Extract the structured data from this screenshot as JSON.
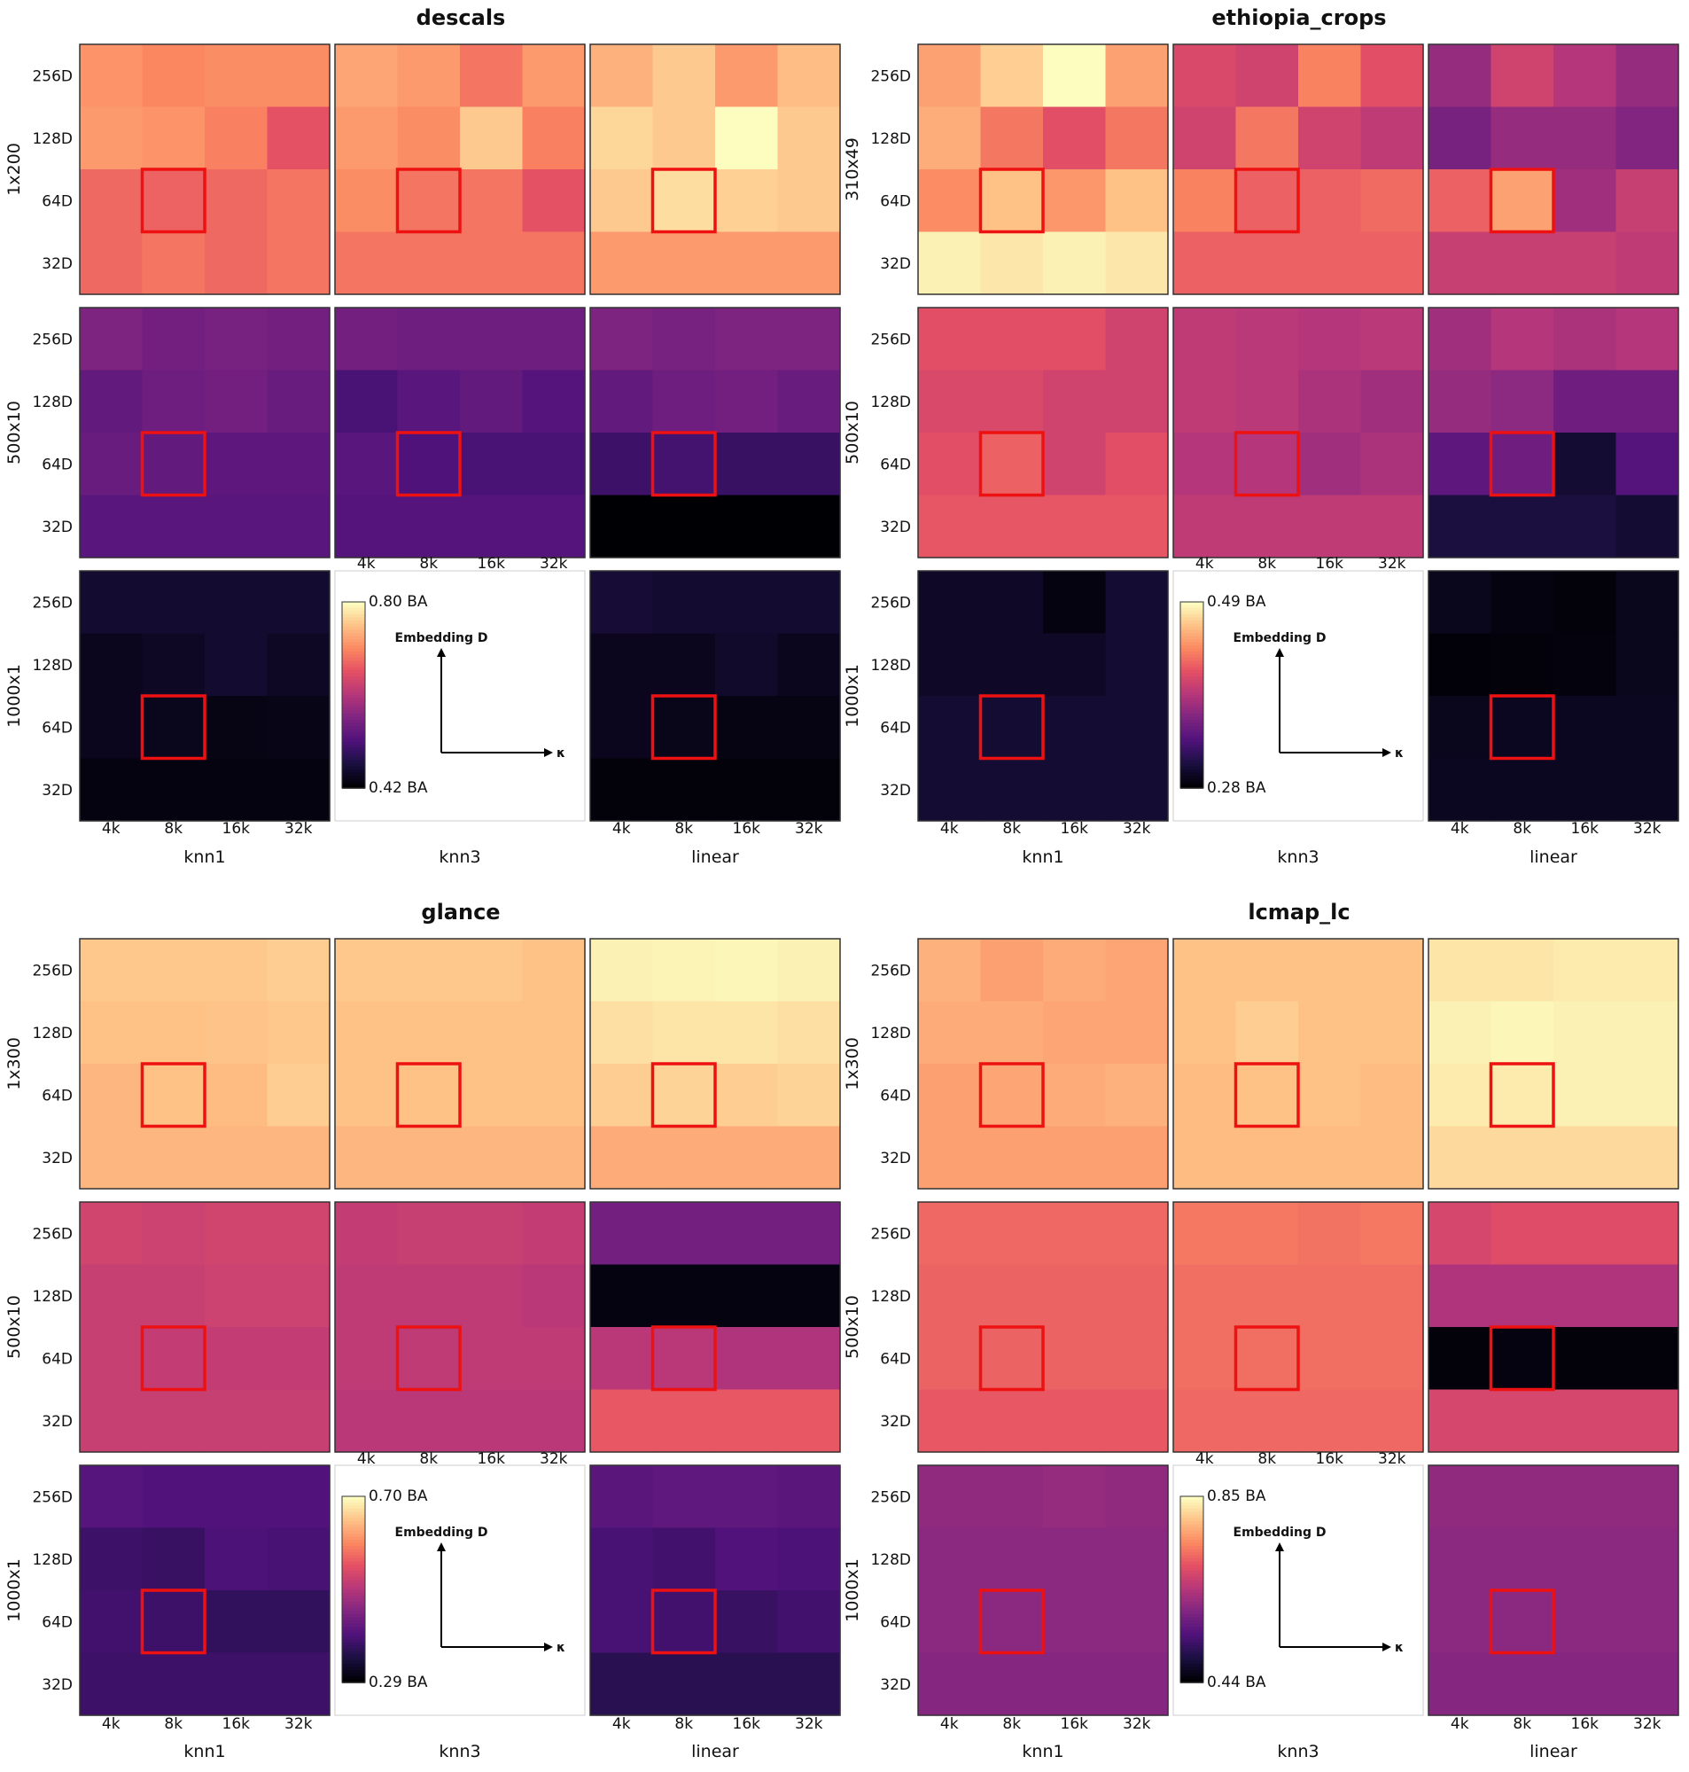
{
  "chart_data": [
    {
      "type": "heatmap",
      "title": "descals",
      "row_labels": [
        "1x200",
        "500x10",
        "1000x1"
      ],
      "col_labels": [
        "knn1",
        "knn3",
        "linear"
      ],
      "x_ticks": [
        "4k",
        "8k",
        "16k",
        "32k"
      ],
      "y_ticks": [
        "256D",
        "128D",
        "64D",
        "32D"
      ],
      "colorbar": {
        "min": 0.42,
        "max": 0.8,
        "min_label": "0.42 BA",
        "max_label": "0.80 BA",
        "cmap": "magma"
      },
      "selected_cell": {
        "x": "8k",
        "y": "64D"
      },
      "grids": [
        [
          [
            [
              0.715,
              0.705,
              0.71,
              0.71
            ],
            [
              0.72,
              0.715,
              0.7,
              0.66
            ],
            [
              0.68,
              0.675,
              0.68,
              0.69
            ],
            [
              0.68,
              0.69,
              0.68,
              0.69
            ]
          ],
          [
            [
              0.73,
              0.72,
              0.69,
              0.72
            ],
            [
              0.72,
              0.71,
              0.76,
              0.7
            ],
            [
              0.71,
              0.69,
              0.69,
              0.66
            ],
            [
              0.69,
              0.69,
              0.69,
              0.69
            ]
          ],
          [
            [
              0.74,
              0.76,
              0.72,
              0.75
            ],
            [
              0.77,
              0.76,
              0.8,
              0.76
            ],
            [
              0.76,
              0.775,
              0.765,
              0.76
            ],
            [
              0.72,
              0.72,
              0.72,
              0.72
            ]
          ]
        ],
        [
          [
            [
              0.56,
              0.55,
              0.555,
              0.55
            ],
            [
              0.535,
              0.545,
              0.55,
              0.54
            ],
            [
              0.54,
              0.535,
              0.53,
              0.53
            ],
            [
              0.525,
              0.525,
              0.525,
              0.525
            ]
          ],
          [
            [
              0.55,
              0.545,
              0.545,
              0.545
            ],
            [
              0.51,
              0.525,
              0.535,
              0.52
            ],
            [
              0.525,
              0.515,
              0.51,
              0.51
            ],
            [
              0.52,
              0.52,
              0.52,
              0.52
            ]
          ],
          [
            [
              0.56,
              0.555,
              0.56,
              0.56
            ],
            [
              0.535,
              0.545,
              0.55,
              0.54
            ],
            [
              0.5,
              0.505,
              0.495,
              0.495
            ],
            [
              0.42,
              0.42,
              0.42,
              0.42
            ]
          ]
        ],
        [
          [
            [
              0.455,
              0.455,
              0.455,
              0.455
            ],
            [
              0.44,
              0.445,
              0.455,
              0.445
            ],
            [
              0.44,
              0.438,
              0.432,
              0.434
            ],
            [
              0.43,
              0.43,
              0.43,
              0.43
            ]
          ],
          null,
          [
            [
              0.458,
              0.455,
              0.455,
              0.455
            ],
            [
              0.44,
              0.44,
              0.45,
              0.44
            ],
            [
              0.44,
              0.437,
              0.431,
              0.431
            ],
            [
              0.425,
              0.425,
              0.425,
              0.425
            ]
          ]
        ]
      ]
    },
    {
      "type": "heatmap",
      "title": "ethiopia_crops",
      "row_labels": [
        "310x49",
        "500x10",
        "1000x1"
      ],
      "col_labels": [
        "knn1",
        "knn3",
        "linear"
      ],
      "x_ticks": [
        "4k",
        "8k",
        "16k",
        "32k"
      ],
      "y_ticks": [
        "256D",
        "128D",
        "64D",
        "32D"
      ],
      "colorbar": {
        "min": 0.28,
        "max": 0.49,
        "min_label": "0.28 BA",
        "max_label": "0.49 BA",
        "cmap": "magma"
      },
      "selected_cell": {
        "x": "8k",
        "y": "64D"
      },
      "grids": [
        [
          [
            [
              0.45,
              0.47,
              0.49,
              0.45
            ],
            [
              0.455,
              0.43,
              0.41,
              0.43
            ],
            [
              0.44,
              0.465,
              0.445,
              0.465
            ],
            [
              0.485,
              0.48,
              0.485,
              0.48
            ]
          ],
          [
            [
              0.405,
              0.4,
              0.435,
              0.41
            ],
            [
              0.4,
              0.43,
              0.4,
              0.39
            ],
            [
              0.435,
              0.42,
              0.42,
              0.425
            ],
            [
              0.42,
              0.42,
              0.42,
              0.42
            ]
          ],
          [
            [
              0.37,
              0.4,
              0.385,
              0.37
            ],
            [
              0.355,
              0.37,
              0.37,
              0.36
            ],
            [
              0.42,
              0.45,
              0.375,
              0.395
            ],
            [
              0.395,
              0.395,
              0.395,
              0.39
            ]
          ]
        ],
        [
          [
            [
              0.41,
              0.41,
              0.41,
              0.4
            ],
            [
              0.405,
              0.405,
              0.4,
              0.4
            ],
            [
              0.41,
              0.42,
              0.4,
              0.41
            ],
            [
              0.415,
              0.415,
              0.415,
              0.415
            ]
          ],
          [
            [
              0.39,
              0.388,
              0.385,
              0.388
            ],
            [
              0.39,
              0.388,
              0.38,
              0.375
            ],
            [
              0.385,
              0.385,
              0.375,
              0.38
            ],
            [
              0.39,
              0.39,
              0.39,
              0.39
            ]
          ],
          [
            [
              0.375,
              0.385,
              0.38,
              0.385
            ],
            [
              0.37,
              0.365,
              0.35,
              0.35
            ],
            [
              0.34,
              0.35,
              0.3,
              0.335
            ],
            [
              0.305,
              0.305,
              0.305,
              0.3
            ]
          ]
        ],
        [
          [
            [
              0.295,
              0.295,
              0.285,
              0.3
            ],
            [
              0.295,
              0.295,
              0.295,
              0.3
            ],
            [
              0.3,
              0.3,
              0.3,
              0.3
            ],
            [
              0.3,
              0.3,
              0.3,
              0.3
            ]
          ],
          null,
          [
            [
              0.29,
              0.285,
              0.283,
              0.29
            ],
            [
              0.282,
              0.283,
              0.284,
              0.29
            ],
            [
              0.29,
              0.292,
              0.292,
              0.292
            ],
            [
              0.292,
              0.292,
              0.292,
              0.292
            ]
          ]
        ]
      ]
    },
    {
      "type": "heatmap",
      "title": "glance",
      "row_labels": [
        "1x300",
        "500x10",
        "1000x1"
      ],
      "col_labels": [
        "knn1",
        "knn3",
        "linear"
      ],
      "x_ticks": [
        "4k",
        "8k",
        "16k",
        "32k"
      ],
      "y_ticks": [
        "256D",
        "128D",
        "64D",
        "32D"
      ],
      "colorbar": {
        "min": 0.29,
        "max": 0.7,
        "min_label": "0.29 BA",
        "max_label": "0.70 BA",
        "cmap": "magma"
      },
      "selected_cell": {
        "x": "8k",
        "y": "64D"
      },
      "grids": [
        [
          [
            [
              0.655,
              0.655,
              0.655,
              0.66
            ],
            [
              0.65,
              0.65,
              0.652,
              0.655
            ],
            [
              0.64,
              0.65,
              0.645,
              0.66
            ],
            [
              0.64,
              0.64,
              0.64,
              0.64
            ]
          ],
          [
            [
              0.655,
              0.655,
              0.655,
              0.65
            ],
            [
              0.65,
              0.65,
              0.65,
              0.65
            ],
            [
              0.65,
              0.65,
              0.65,
              0.65
            ],
            [
              0.64,
              0.64,
              0.64,
              0.64
            ]
          ],
          [
            [
              0.69,
              0.692,
              0.695,
              0.69
            ],
            [
              0.675,
              0.68,
              0.68,
              0.675
            ],
            [
              0.66,
              0.665,
              0.66,
              0.665
            ],
            [
              0.63,
              0.63,
              0.63,
              0.63
            ]
          ]
        ],
        [
          [
            [
              0.525,
              0.52,
              0.525,
              0.525
            ],
            [
              0.515,
              0.515,
              0.52,
              0.52
            ],
            [
              0.515,
              0.51,
              0.51,
              0.51
            ],
            [
              0.515,
              0.515,
              0.515,
              0.515
            ]
          ],
          [
            [
              0.51,
              0.515,
              0.515,
              0.51
            ],
            [
              0.505,
              0.505,
              0.505,
              0.5
            ],
            [
              0.505,
              0.505,
              0.505,
              0.505
            ],
            [
              0.5,
              0.5,
              0.5,
              0.5
            ]
          ],
          [
            [
              0.43,
              0.43,
              0.43,
              0.43
            ],
            [
              0.3,
              0.3,
              0.3,
              0.3
            ],
            [
              0.5,
              0.5,
              0.49,
              0.49
            ],
            [
              0.555,
              0.555,
              0.555,
              0.555
            ]
          ]
        ],
        [
          [
            [
              0.4,
              0.395,
              0.395,
              0.395
            ],
            [
              0.375,
              0.37,
              0.39,
              0.385
            ],
            [
              0.38,
              0.375,
              0.365,
              0.365
            ],
            [
              0.375,
              0.375,
              0.375,
              0.375
            ]
          ],
          null,
          [
            [
              0.405,
              0.41,
              0.41,
              0.405
            ],
            [
              0.385,
              0.38,
              0.395,
              0.39
            ],
            [
              0.385,
              0.38,
              0.37,
              0.38
            ],
            [
              0.355,
              0.355,
              0.355,
              0.355
            ]
          ]
        ]
      ]
    },
    {
      "type": "heatmap",
      "title": "lcmap_lc",
      "row_labels": [
        "1x300",
        "500x10",
        "1000x1"
      ],
      "col_labels": [
        "knn1",
        "knn3",
        "linear"
      ],
      "x_ticks": [
        "4k",
        "8k",
        "16k",
        "32k"
      ],
      "y_ticks": [
        "256D",
        "128D",
        "64D",
        "32D"
      ],
      "colorbar": {
        "min": 0.44,
        "max": 0.85,
        "min_label": "0.44 BA",
        "max_label": "0.85 BA",
        "cmap": "magma"
      },
      "selected_cell": {
        "x": "8k",
        "y": "64D"
      },
      "grids": [
        [
          [
            [
              0.785,
              0.77,
              0.78,
              0.775
            ],
            [
              0.78,
              0.78,
              0.775,
              0.775
            ],
            [
              0.77,
              0.775,
              0.78,
              0.785
            ],
            [
              0.77,
              0.77,
              0.77,
              0.77
            ]
          ],
          [
            [
              0.8,
              0.8,
              0.8,
              0.8
            ],
            [
              0.8,
              0.81,
              0.8,
              0.8
            ],
            [
              0.795,
              0.8,
              0.8,
              0.795
            ],
            [
              0.795,
              0.795,
              0.795,
              0.795
            ]
          ],
          [
            [
              0.83,
              0.83,
              0.835,
              0.835
            ],
            [
              0.84,
              0.845,
              0.84,
              0.84
            ],
            [
              0.835,
              0.835,
              0.84,
              0.84
            ],
            [
              0.82,
              0.82,
              0.82,
              0.82
            ]
          ]
        ],
        [
          [
            [
              0.72,
              0.72,
              0.72,
              0.72
            ],
            [
              0.715,
              0.715,
              0.715,
              0.715
            ],
            [
              0.715,
              0.715,
              0.715,
              0.715
            ],
            [
              0.705,
              0.705,
              0.705,
              0.705
            ]
          ],
          [
            [
              0.735,
              0.735,
              0.73,
              0.735
            ],
            [
              0.725,
              0.725,
              0.725,
              0.725
            ],
            [
              0.725,
              0.725,
              0.725,
              0.725
            ],
            [
              0.72,
              0.72,
              0.72,
              0.72
            ]
          ],
          [
            [
              0.68,
              0.69,
              0.69,
              0.69
            ],
            [
              0.64,
              0.64,
              0.64,
              0.64
            ],
            [
              0.445,
              0.45,
              0.445,
              0.445
            ],
            [
              0.68,
              0.68,
              0.68,
              0.68
            ]
          ]
        ],
        [
          [
            [
              0.61,
              0.61,
              0.615,
              0.61
            ],
            [
              0.605,
              0.605,
              0.605,
              0.605
            ],
            [
              0.605,
              0.605,
              0.605,
              0.605
            ],
            [
              0.6,
              0.6,
              0.6,
              0.6
            ]
          ],
          null,
          [
            [
              0.61,
              0.61,
              0.61,
              0.61
            ],
            [
              0.605,
              0.605,
              0.605,
              0.605
            ],
            [
              0.605,
              0.605,
              0.605,
              0.605
            ],
            [
              0.6,
              0.6,
              0.6,
              0.6
            ]
          ]
        ]
      ]
    }
  ],
  "legend_panel": {
    "y_arrow_label": "Embedding D",
    "x_arrow_label": "κ"
  }
}
